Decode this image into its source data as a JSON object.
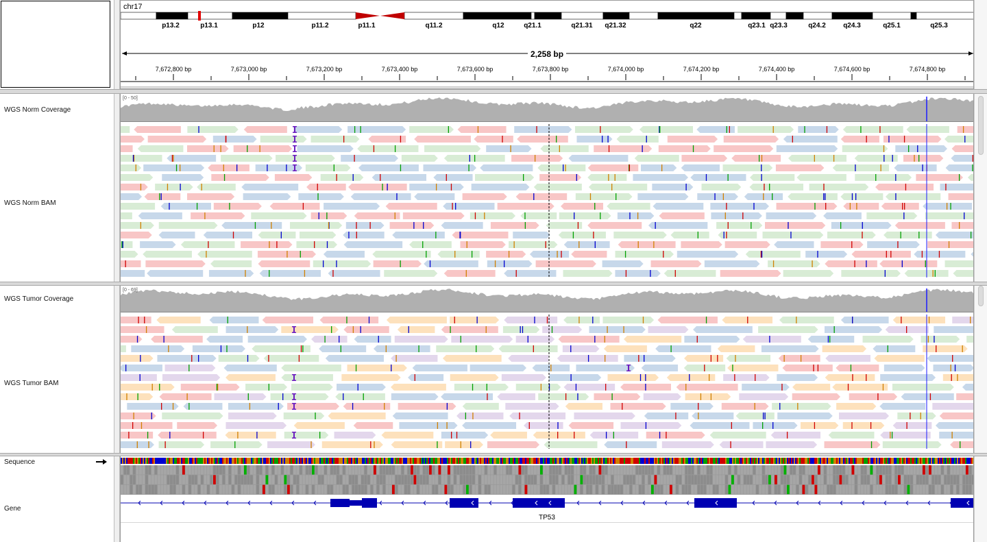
{
  "header": {
    "chromosome": "chr17",
    "bands": [
      "p13.2",
      "p13.1",
      "p12",
      "p11.2",
      "p11.1",
      "q11.2",
      "q12",
      "q21.1",
      "q21.31",
      "q21.32",
      "q22",
      "q23.1",
      "q23.3",
      "q24.2",
      "q24.3",
      "q25.1",
      "q25.3"
    ],
    "span_label": "2,258 bp",
    "ruler_ticks": [
      "7,672,800 bp",
      "7,673,000 bp",
      "7,673,200 bp",
      "7,673,400 bp",
      "7,673,600 bp",
      "7,673,800 bp",
      "7,674,000 bp",
      "7,674,200 bp",
      "7,674,400 bp",
      "7,674,600 bp",
      "7,674,800 bp"
    ]
  },
  "tracks": {
    "norm_coverage": {
      "label": "WGS Norm Coverage",
      "range": "[0 - 50]"
    },
    "norm_bam": {
      "label": "WGS Norm BAM"
    },
    "tumor_coverage": {
      "label": "WGS Tumor Coverage",
      "range": "[0 - 69]"
    },
    "tumor_bam": {
      "label": "WGS Tumor BAM"
    },
    "sequence": {
      "label": "Sequence",
      "strand_icon": "right-arrow-icon"
    },
    "gene": {
      "label": "Gene",
      "gene_name": "TP53"
    }
  },
  "colors": {
    "read_red": "#f8c6c6",
    "read_blue": "#c7d8ea",
    "read_green": "#d8ecd5",
    "read_orange": "#fde1bc",
    "read_purple": "#e3d7ec",
    "coverage": "#b0b0b0",
    "gene": "#0000b2",
    "centromere": "#c00000",
    "insertion": "#6a1bbf"
  }
}
